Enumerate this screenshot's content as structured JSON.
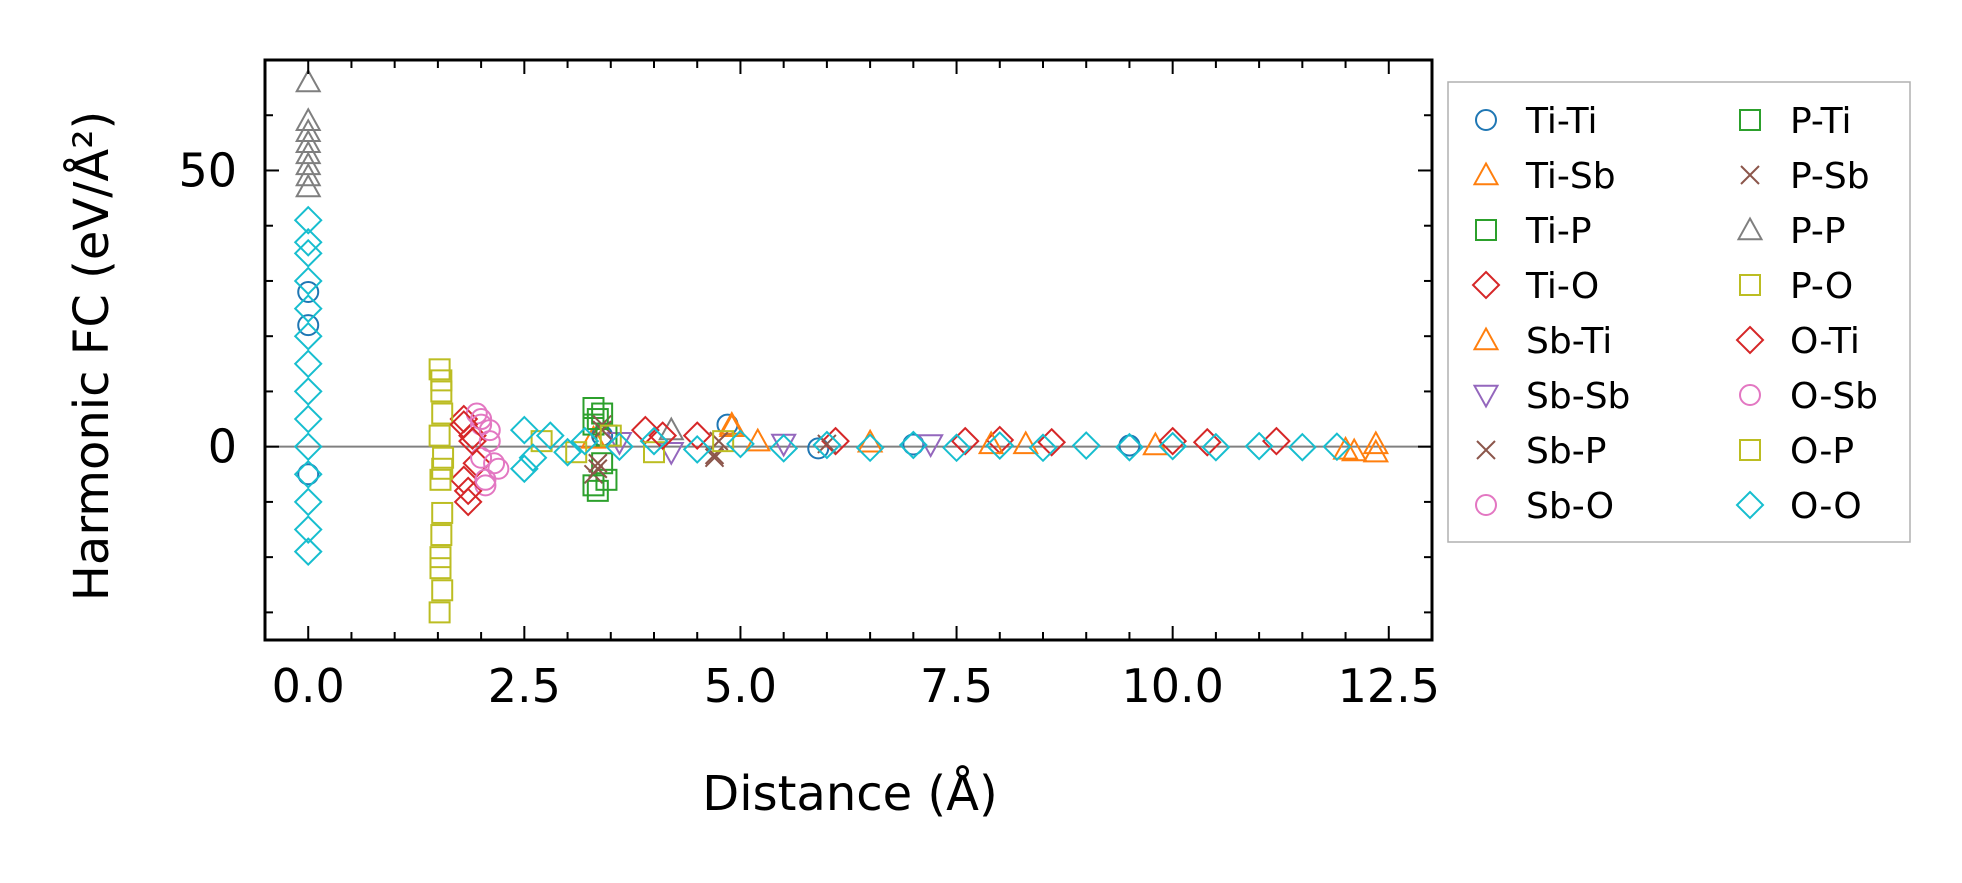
{
  "chart_data": {
    "type": "scatter",
    "title": "",
    "xlabel": "Distance (Å)",
    "ylabel": "Harmonic FC (eV/Å²)",
    "xlim": [
      -0.5,
      13.0
    ],
    "ylim": [
      -35,
      70
    ],
    "x_ticks": [
      0.0,
      2.5,
      5.0,
      7.5,
      10.0,
      12.5
    ],
    "x_tick_labels": [
      "0.0",
      "2.5",
      "5.0",
      "7.5",
      "10.0",
      "12.5"
    ],
    "y_ticks": [
      0,
      50
    ],
    "y_tick_labels": [
      "0",
      "50"
    ],
    "zero_line": true,
    "legend_location": "outside-right",
    "legend_columns": 2,
    "series": [
      {
        "name": "Ti-Ti",
        "marker": "circle",
        "color": "#1f77b4",
        "points": [
          [
            0,
            28
          ],
          [
            0,
            22
          ],
          [
            0,
            -5
          ],
          [
            4.85,
            4
          ],
          [
            3.4,
            2
          ],
          [
            5.9,
            -0.3
          ],
          [
            7.0,
            0.4
          ],
          [
            9.5,
            0.2
          ]
        ]
      },
      {
        "name": "Ti-Sb",
        "marker": "triangle-up",
        "color": "#ff7f0e",
        "points": [
          [
            3.3,
            1.5
          ],
          [
            4.9,
            3.6
          ],
          [
            6.5,
            0.8
          ],
          [
            8.3,
            0.5
          ],
          [
            12.0,
            -0.5
          ],
          [
            12.1,
            -0.8
          ],
          [
            12.35,
            -1.0
          ],
          [
            12.35,
            0.5
          ]
        ]
      },
      {
        "name": "Ti-P",
        "marker": "square",
        "color": "#2ca02c",
        "points": [
          [
            3.3,
            7
          ],
          [
            3.4,
            6
          ],
          [
            3.35,
            -8
          ],
          [
            3.45,
            -6
          ],
          [
            3.3,
            4
          ],
          [
            3.4,
            -3
          ]
        ]
      },
      {
        "name": "Ti-O",
        "marker": "diamond",
        "color": "#d62728",
        "points": [
          [
            1.8,
            5
          ],
          [
            1.85,
            -10
          ],
          [
            1.9,
            2
          ],
          [
            1.8,
            -6
          ],
          [
            1.95,
            -3
          ],
          [
            3.9,
            3
          ],
          [
            4.5,
            2
          ],
          [
            6.1,
            1
          ],
          [
            8.0,
            1.2
          ],
          [
            10.4,
            0.8
          ],
          [
            11.2,
            1
          ]
        ]
      },
      {
        "name": "Sb-Ti",
        "marker": "triangle-up",
        "color": "#ff7f0e",
        "points": [
          [
            4.9,
            4
          ],
          [
            5.2,
            1
          ],
          [
            7.9,
            0.5
          ],
          [
            9.8,
            0.3
          ]
        ]
      },
      {
        "name": "Sb-Sb",
        "marker": "triangle-down",
        "color": "#9467bd",
        "points": [
          [
            3.6,
            0.8
          ],
          [
            4.2,
            -1
          ],
          [
            5.5,
            0.5
          ],
          [
            7.2,
            0.4
          ]
        ]
      },
      {
        "name": "Sb-P",
        "marker": "x",
        "color": "#8c564b",
        "points": [
          [
            3.3,
            -5
          ],
          [
            3.35,
            -3
          ],
          [
            3.4,
            4
          ],
          [
            4.7,
            -2
          ],
          [
            4.75,
            1
          ],
          [
            6.0,
            0.5
          ]
        ]
      },
      {
        "name": "Sb-O",
        "marker": "circle",
        "color": "#e377c2",
        "points": [
          [
            1.95,
            6
          ],
          [
            2.0,
            4
          ],
          [
            2.0,
            -2
          ],
          [
            2.05,
            -7
          ],
          [
            2.1,
            1
          ],
          [
            2.2,
            -4
          ]
        ]
      },
      {
        "name": "P-Ti",
        "marker": "square",
        "color": "#2ca02c",
        "points": [
          [
            3.35,
            5
          ],
          [
            3.3,
            -7
          ],
          [
            3.45,
            2
          ]
        ]
      },
      {
        "name": "P-Sb",
        "marker": "x",
        "color": "#8c564b",
        "points": [
          [
            3.35,
            -4
          ],
          [
            3.4,
            3
          ],
          [
            4.7,
            -1.5
          ]
        ]
      },
      {
        "name": "P-P",
        "marker": "triangle-up",
        "color": "#7f7f7f",
        "points": [
          [
            0,
            66
          ],
          [
            0,
            59
          ],
          [
            0,
            57
          ],
          [
            0,
            55
          ],
          [
            0,
            53
          ],
          [
            0,
            51
          ],
          [
            0,
            49
          ],
          [
            0,
            47
          ],
          [
            4.2,
            3
          ]
        ]
      },
      {
        "name": "P-O",
        "marker": "square",
        "color": "#bcbd22",
        "points": [
          [
            1.52,
            14
          ],
          [
            1.54,
            10
          ],
          [
            1.55,
            6
          ],
          [
            1.52,
            2
          ],
          [
            1.56,
            -2
          ],
          [
            1.53,
            -6
          ],
          [
            1.55,
            -12
          ],
          [
            1.54,
            -16
          ],
          [
            1.53,
            -22
          ],
          [
            1.55,
            -26
          ],
          [
            1.52,
            -30
          ],
          [
            2.7,
            1
          ],
          [
            3.1,
            -1
          ],
          [
            3.5,
            2
          ],
          [
            4.0,
            -1
          ],
          [
            4.8,
            1
          ]
        ]
      },
      {
        "name": "O-Ti",
        "marker": "diamond",
        "color": "#d62728",
        "points": [
          [
            1.8,
            4
          ],
          [
            1.85,
            -8
          ],
          [
            1.9,
            1
          ],
          [
            4.1,
            2
          ],
          [
            7.6,
            1
          ],
          [
            8.6,
            0.8
          ],
          [
            10.0,
            1
          ]
        ]
      },
      {
        "name": "O-Sb",
        "marker": "circle",
        "color": "#e377c2",
        "points": [
          [
            2.0,
            5
          ],
          [
            2.05,
            -6
          ],
          [
            2.1,
            3
          ],
          [
            2.15,
            -3
          ]
        ]
      },
      {
        "name": "O-P",
        "marker": "square",
        "color": "#bcbd22",
        "points": [
          [
            1.54,
            12
          ],
          [
            1.55,
            -4
          ],
          [
            1.53,
            -20
          ]
        ]
      },
      {
        "name": "O-O",
        "marker": "diamond",
        "color": "#17becf",
        "points": [
          [
            0,
            41
          ],
          [
            0,
            37
          ],
          [
            0,
            35
          ],
          [
            0,
            30
          ],
          [
            0,
            25
          ],
          [
            0,
            20
          ],
          [
            0,
            15
          ],
          [
            0,
            10
          ],
          [
            0,
            5
          ],
          [
            0,
            0
          ],
          [
            0,
            -5
          ],
          [
            0,
            -10
          ],
          [
            0,
            -15
          ],
          [
            0,
            -19
          ],
          [
            2.5,
            3
          ],
          [
            2.5,
            -4
          ],
          [
            2.6,
            -2
          ],
          [
            2.8,
            2
          ],
          [
            3.0,
            -1
          ],
          [
            3.2,
            1
          ],
          [
            3.6,
            0
          ],
          [
            4.0,
            1
          ],
          [
            4.5,
            -0.5
          ],
          [
            5.0,
            0.5
          ],
          [
            5.5,
            -0.3
          ],
          [
            6.0,
            0.3
          ],
          [
            6.5,
            -0.2
          ],
          [
            7.0,
            0.3
          ],
          [
            7.5,
            -0.2
          ],
          [
            8.0,
            0.2
          ],
          [
            8.5,
            -0.2
          ],
          [
            9.0,
            0.2
          ],
          [
            9.5,
            -0.1
          ],
          [
            10.0,
            0.1
          ],
          [
            10.5,
            -0.1
          ],
          [
            11.0,
            0.1
          ],
          [
            11.5,
            -0.1
          ],
          [
            11.9,
            0.0
          ]
        ]
      }
    ]
  }
}
